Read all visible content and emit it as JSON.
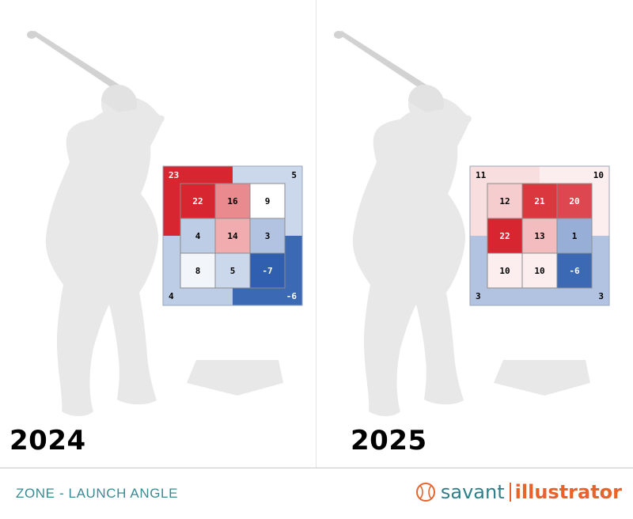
{
  "chart_data": [
    {
      "type": "heatmap",
      "title": "2024",
      "metric": "ZONE - LAUNCH ANGLE",
      "grid": [
        [
          22,
          16,
          9
        ],
        [
          4,
          14,
          3
        ],
        [
          8,
          5,
          -7
        ]
      ],
      "outer": {
        "top_left": 23,
        "top_right": 5,
        "bottom_left": 4,
        "bottom_right": -6
      }
    },
    {
      "type": "heatmap",
      "title": "2025",
      "metric": "ZONE - LAUNCH ANGLE",
      "grid": [
        [
          12,
          21,
          20
        ],
        [
          22,
          13,
          1
        ],
        [
          10,
          10,
          -6
        ]
      ],
      "outer": {
        "top_left": 11,
        "top_right": 10,
        "bottom_left": 3,
        "bottom_right": 3
      }
    }
  ],
  "footer": {
    "title": "ZONE - LAUNCH ANGLE",
    "brand_savant": "savant",
    "brand_illustrator": "illustrator"
  },
  "colors": {
    "high": "#d7262f",
    "mid": "#ffffff",
    "low": "#2f5fae",
    "silhouette": "#e8e8e8",
    "accent_teal": "#2e7f88",
    "accent_orange": "#e8632c"
  }
}
